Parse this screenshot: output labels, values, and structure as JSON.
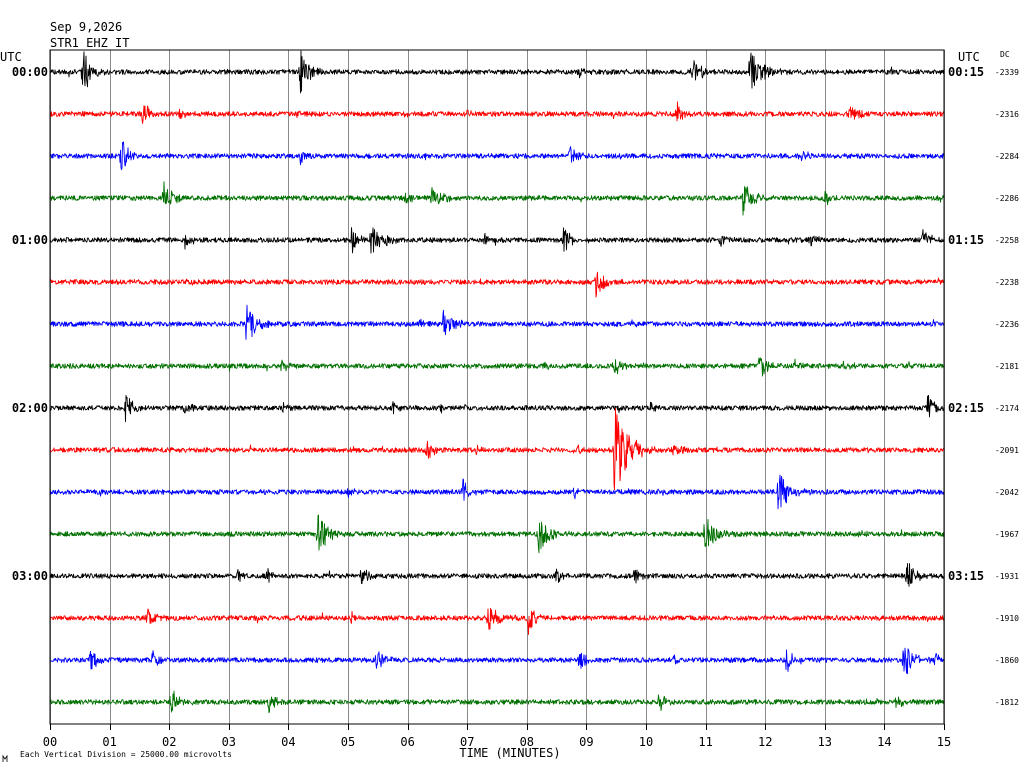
{
  "header": {
    "date": "Sep 9,2026",
    "station": "STR1 EHZ IT"
  },
  "left_axis_title": "UTC",
  "right_axis_title": "UTC",
  "dc_title": "DC",
  "footer": {
    "scale_note": "Each Vertical Division = 25000.00 microvolts"
  },
  "chart_data": {
    "type": "line",
    "title": "",
    "xlabel": "TIME (MINUTES)",
    "xlim": [
      0,
      15
    ],
    "x_ticks": [
      "00",
      "01",
      "02",
      "03",
      "04",
      "05",
      "06",
      "07",
      "08",
      "09",
      "10",
      "11",
      "12",
      "13",
      "14",
      "15"
    ],
    "grid": true,
    "traces": [
      {
        "color": "#000000",
        "left_label": "00:00",
        "right_label": "00:15",
        "dc": "-2339",
        "events": [
          {
            "t": 0.55,
            "amp": 0.55,
            "dur": 0.45
          },
          {
            "t": 4.2,
            "amp": 0.5,
            "dur": 0.45
          },
          {
            "t": 8.86,
            "amp": 0.15,
            "dur": 0.2
          },
          {
            "t": 10.77,
            "amp": 0.4,
            "dur": 0.4
          },
          {
            "t": 11.74,
            "amp": 0.65,
            "dur": 0.5
          }
        ]
      },
      {
        "color": "#ff0000",
        "dc": "-2316",
        "events": [
          {
            "t": 1.56,
            "amp": 0.35,
            "dur": 0.3
          },
          {
            "t": 2.15,
            "amp": 0.15,
            "dur": 0.3
          },
          {
            "t": 5.95,
            "amp": 0.12,
            "dur": 0.15
          },
          {
            "t": 6.98,
            "amp": 0.1,
            "dur": 0.15
          },
          {
            "t": 10.52,
            "amp": 0.3,
            "dur": 0.3
          },
          {
            "t": 13.42,
            "amp": 0.2,
            "dur": 0.45
          }
        ]
      },
      {
        "color": "#0000ff",
        "dc": "-2284",
        "events": [
          {
            "t": 1.19,
            "amp": 0.45,
            "dur": 0.35
          },
          {
            "t": 4.2,
            "amp": 0.2,
            "dur": 0.2
          },
          {
            "t": 8.72,
            "amp": 0.25,
            "dur": 0.3
          },
          {
            "t": 12.58,
            "amp": 0.1,
            "dur": 0.3
          }
        ]
      },
      {
        "color": "#007000",
        "dc": "-2286",
        "events": [
          {
            "t": 1.91,
            "amp": 0.4,
            "dur": 0.35
          },
          {
            "t": 5.96,
            "amp": 0.15,
            "dur": 0.3
          },
          {
            "t": 6.41,
            "amp": 0.3,
            "dur": 0.4
          },
          {
            "t": 11.63,
            "amp": 0.45,
            "dur": 0.4
          },
          {
            "t": 12.99,
            "amp": 0.3,
            "dur": 0.2
          }
        ]
      },
      {
        "color": "#000000",
        "left_label": "01:00",
        "right_label": "01:15",
        "dc": "-2258",
        "events": [
          {
            "t": 2.27,
            "amp": 0.2,
            "dur": 0.25
          },
          {
            "t": 5.05,
            "amp": 0.35,
            "dur": 0.3
          },
          {
            "t": 5.37,
            "amp": 0.45,
            "dur": 0.5
          },
          {
            "t": 7.3,
            "amp": 0.15,
            "dur": 0.2
          },
          {
            "t": 8.59,
            "amp": 0.45,
            "dur": 0.35
          },
          {
            "t": 11.24,
            "amp": 0.15,
            "dur": 0.3
          },
          {
            "t": 12.75,
            "amp": 0.15,
            "dur": 0.25
          },
          {
            "t": 14.65,
            "amp": 0.3,
            "dur": 0.35
          }
        ]
      },
      {
        "color": "#ff0000",
        "dc": "-2238",
        "events": [
          {
            "t": 9.16,
            "amp": 0.4,
            "dur": 0.35
          }
        ]
      },
      {
        "color": "#0000ff",
        "dc": "-2236",
        "events": [
          {
            "t": 3.3,
            "amp": 0.55,
            "dur": 0.4
          },
          {
            "t": 6.21,
            "amp": 0.2,
            "dur": 0.2
          },
          {
            "t": 6.6,
            "amp": 0.35,
            "dur": 0.45
          },
          {
            "t": 9.82,
            "amp": 0.1,
            "dur": 0.15
          },
          {
            "t": 13.47,
            "amp": 0.1,
            "dur": 0.15
          }
        ]
      },
      {
        "color": "#007000",
        "dc": "-2181",
        "events": [
          {
            "t": 3.89,
            "amp": 0.2,
            "dur": 0.2
          },
          {
            "t": 8.31,
            "amp": 0.1,
            "dur": 0.2
          },
          {
            "t": 9.45,
            "amp": 0.3,
            "dur": 0.3
          },
          {
            "t": 11.9,
            "amp": 0.35,
            "dur": 0.3
          },
          {
            "t": 12.5,
            "amp": 0.15,
            "dur": 0.2
          },
          {
            "t": 13.34,
            "amp": 0.15,
            "dur": 0.2
          }
        ]
      },
      {
        "color": "#000000",
        "left_label": "02:00",
        "right_label": "02:15",
        "dc": "-2174",
        "events": [
          {
            "t": 1.27,
            "amp": 0.35,
            "dur": 0.3
          },
          {
            "t": 2.25,
            "amp": 0.2,
            "dur": 0.25
          },
          {
            "t": 3.9,
            "amp": 0.2,
            "dur": 0.2
          },
          {
            "t": 5.76,
            "amp": 0.15,
            "dur": 0.2
          },
          {
            "t": 6.56,
            "amp": 0.15,
            "dur": 0.15
          },
          {
            "t": 10.08,
            "amp": 0.15,
            "dur": 0.2
          },
          {
            "t": 14.72,
            "amp": 0.4,
            "dur": 0.3
          }
        ]
      },
      {
        "color": "#ff0000",
        "dc": "-2091",
        "events": [
          {
            "t": 6.32,
            "amp": 0.3,
            "dur": 0.25
          },
          {
            "t": 7.15,
            "amp": 0.15,
            "dur": 0.2
          },
          {
            "t": 8.8,
            "amp": 0.15,
            "dur": 0.3
          },
          {
            "t": 9.47,
            "amp": 1.05,
            "dur": 0.65
          },
          {
            "t": 10.45,
            "amp": 0.2,
            "dur": 0.35
          }
        ]
      },
      {
        "color": "#0000ff",
        "dc": "-2042",
        "events": [
          {
            "t": 5.0,
            "amp": 0.2,
            "dur": 0.2
          },
          {
            "t": 6.93,
            "amp": 0.3,
            "dur": 0.25
          },
          {
            "t": 8.8,
            "amp": 0.15,
            "dur": 0.15
          },
          {
            "t": 12.22,
            "amp": 0.55,
            "dur": 0.45
          }
        ]
      },
      {
        "color": "#007000",
        "dc": "-1967",
        "events": [
          {
            "t": 4.48,
            "amp": 0.65,
            "dur": 0.4
          },
          {
            "t": 8.2,
            "amp": 0.5,
            "dur": 0.4
          },
          {
            "t": 10.98,
            "amp": 0.5,
            "dur": 0.45
          },
          {
            "t": 13.59,
            "amp": 0.1,
            "dur": 0.15
          }
        ]
      },
      {
        "color": "#000000",
        "left_label": "03:00",
        "right_label": "03:15",
        "dc": "-1931",
        "events": [
          {
            "t": 3.15,
            "amp": 0.2,
            "dur": 0.25
          },
          {
            "t": 3.64,
            "amp": 0.2,
            "dur": 0.2
          },
          {
            "t": 5.22,
            "amp": 0.3,
            "dur": 0.3
          },
          {
            "t": 8.5,
            "amp": 0.2,
            "dur": 0.3
          },
          {
            "t": 9.8,
            "amp": 0.25,
            "dur": 0.3
          },
          {
            "t": 14.38,
            "amp": 0.45,
            "dur": 0.35
          }
        ]
      },
      {
        "color": "#ff0000",
        "dc": "-1910",
        "events": [
          {
            "t": 1.62,
            "amp": 0.3,
            "dur": 0.35
          },
          {
            "t": 5.05,
            "amp": 0.15,
            "dur": 0.15
          },
          {
            "t": 7.35,
            "amp": 0.4,
            "dur": 0.4
          },
          {
            "t": 8.03,
            "amp": 0.4,
            "dur": 0.3
          }
        ]
      },
      {
        "color": "#0000ff",
        "dc": "-1860",
        "events": [
          {
            "t": 0.67,
            "amp": 0.3,
            "dur": 0.3
          },
          {
            "t": 1.72,
            "amp": 0.25,
            "dur": 0.25
          },
          {
            "t": 5.48,
            "amp": 0.35,
            "dur": 0.3
          },
          {
            "t": 8.87,
            "amp": 0.3,
            "dur": 0.3
          },
          {
            "t": 10.48,
            "amp": 0.2,
            "dur": 0.15
          },
          {
            "t": 12.35,
            "amp": 0.35,
            "dur": 0.3
          },
          {
            "t": 14.32,
            "amp": 0.45,
            "dur": 0.45
          },
          {
            "t": 14.85,
            "amp": 0.25,
            "dur": 0.15
          }
        ]
      },
      {
        "color": "#007000",
        "dc": "-1812",
        "events": [
          {
            "t": 2.03,
            "amp": 0.3,
            "dur": 0.4
          },
          {
            "t": 3.67,
            "amp": 0.3,
            "dur": 0.3
          },
          {
            "t": 10.22,
            "amp": 0.25,
            "dur": 0.3
          },
          {
            "t": 14.2,
            "amp": 0.15,
            "dur": 0.3
          }
        ]
      }
    ]
  }
}
